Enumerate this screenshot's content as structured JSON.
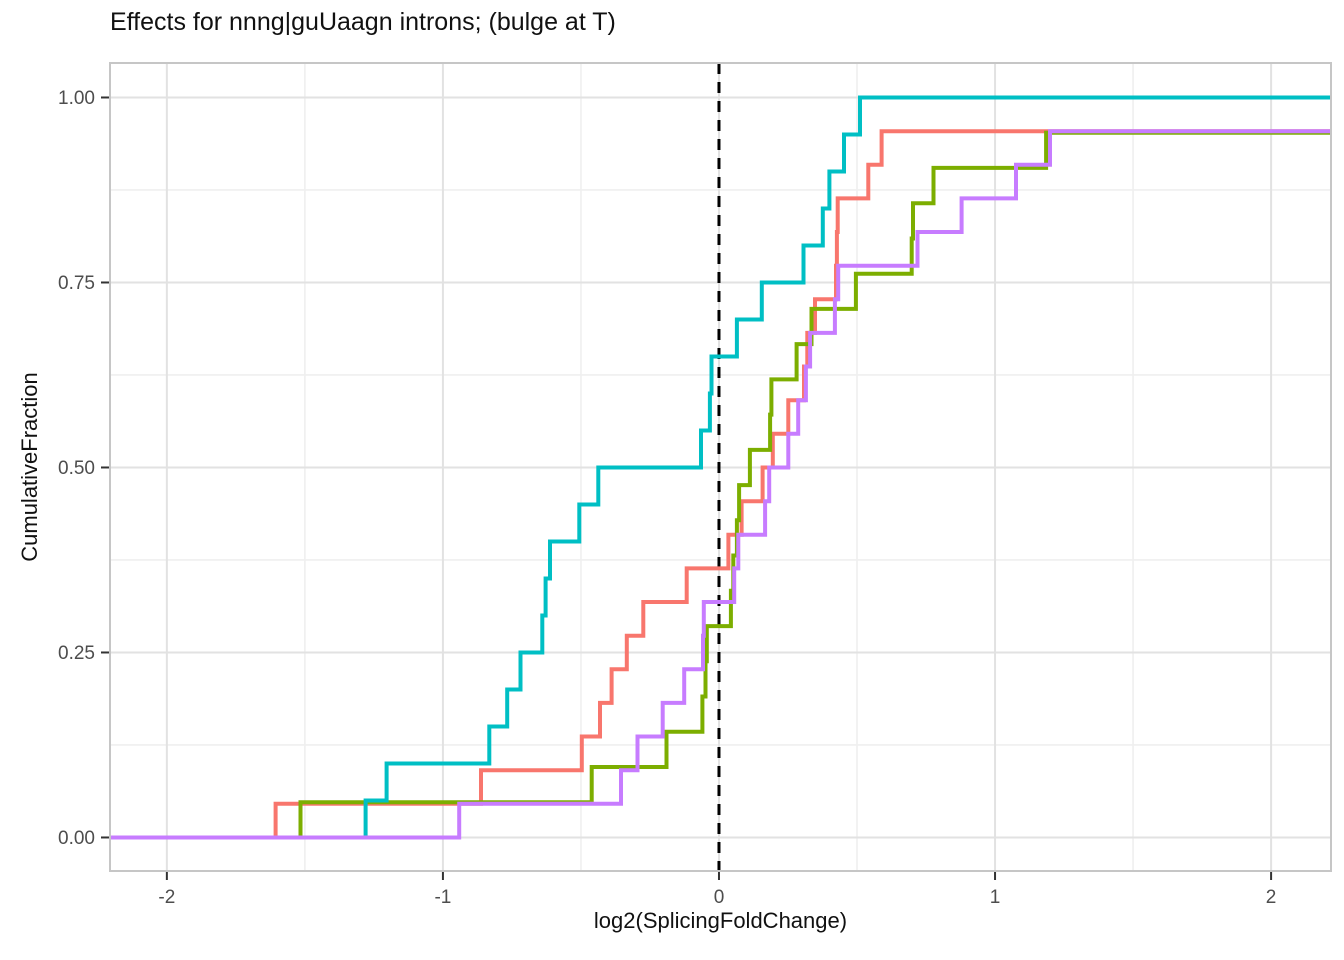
{
  "chart_data": {
    "type": "ecdf_step",
    "title": "Effects for nnng|guUaagn introns; (bulge at T)",
    "xlabel": "log2(SplicingFoldChange)",
    "ylabel": "CumulativeFraction",
    "xlim": [
      -2.206,
      2.217
    ],
    "ylim": [
      -0.0453,
      1.0466
    ],
    "grid": "on",
    "legend_position": "none",
    "x_ticks": {
      "values": [
        -2,
        -1,
        0,
        1,
        2
      ],
      "labels": [
        "-2",
        "-1",
        "0",
        "1",
        "2"
      ]
    },
    "y_ticks": {
      "values": [
        0,
        0.25,
        0.5,
        0.75,
        1.0
      ],
      "labels": [
        "0.00",
        "0.25",
        "0.50",
        "0.75",
        "1.00"
      ]
    },
    "x_minor": [
      -1.5,
      -0.5,
      0.5,
      1.5
    ],
    "y_minor": [
      0.125,
      0.375,
      0.625,
      0.875
    ],
    "vline": {
      "x": 0,
      "style": "dashed",
      "color": "#000000"
    },
    "colors": {
      "salmon": "#F8766D",
      "olive": "#7CAE00",
      "teal": "#00BFC4",
      "purple": "#C77CFF"
    },
    "series": [
      {
        "name": "salmon",
        "color": "#F8766D",
        "n_points": 22,
        "points": [
          [
            -1.606,
            0.0455
          ],
          [
            -0.862,
            0.0909
          ],
          [
            -0.497,
            0.1364
          ],
          [
            -0.431,
            0.1818
          ],
          [
            -0.389,
            0.2273
          ],
          [
            -0.334,
            0.2727
          ],
          [
            -0.274,
            0.3182
          ],
          [
            -0.117,
            0.3636
          ],
          [
            0.034,
            0.4091
          ],
          [
            0.082,
            0.4545
          ],
          [
            0.158,
            0.5
          ],
          [
            0.195,
            0.5455
          ],
          [
            0.251,
            0.5909
          ],
          [
            0.308,
            0.6364
          ],
          [
            0.32,
            0.6818
          ],
          [
            0.348,
            0.7273
          ],
          [
            0.424,
            0.7727
          ],
          [
            0.427,
            0.8182
          ],
          [
            0.43,
            0.8636
          ],
          [
            0.541,
            0.9091
          ],
          [
            0.589,
            0.9545
          ]
        ]
      },
      {
        "name": "olive",
        "color": "#7CAE00",
        "n_points": 21,
        "points": [
          [
            -1.516,
            0.0476
          ],
          [
            -0.461,
            0.0952
          ],
          [
            -0.19,
            0.1429
          ],
          [
            -0.06,
            0.1905
          ],
          [
            -0.049,
            0.2381
          ],
          [
            -0.044,
            0.2857
          ],
          [
            0.043,
            0.3333
          ],
          [
            0.052,
            0.381
          ],
          [
            0.065,
            0.4286
          ],
          [
            0.073,
            0.4762
          ],
          [
            0.112,
            0.5238
          ],
          [
            0.185,
            0.5714
          ],
          [
            0.19,
            0.619
          ],
          [
            0.281,
            0.6667
          ],
          [
            0.335,
            0.7143
          ],
          [
            0.496,
            0.7619
          ],
          [
            0.698,
            0.8095
          ],
          [
            0.703,
            0.8571
          ],
          [
            0.777,
            0.9048
          ],
          [
            1.185,
            0.9524
          ]
        ]
      },
      {
        "name": "teal",
        "color": "#00BFC4",
        "n_points": 20,
        "points": [
          [
            -1.28,
            0.05
          ],
          [
            -1.204,
            0.1
          ],
          [
            -0.832,
            0.15
          ],
          [
            -0.767,
            0.2
          ],
          [
            -0.719,
            0.25
          ],
          [
            -0.64,
            0.3
          ],
          [
            -0.628,
            0.35
          ],
          [
            -0.612,
            0.4
          ],
          [
            -0.506,
            0.45
          ],
          [
            -0.437,
            0.5
          ],
          [
            -0.065,
            0.55
          ],
          [
            -0.033,
            0.6
          ],
          [
            -0.027,
            0.65
          ],
          [
            0.065,
            0.7
          ],
          [
            0.155,
            0.75
          ],
          [
            0.306,
            0.8
          ],
          [
            0.376,
            0.85
          ],
          [
            0.4,
            0.9
          ],
          [
            0.453,
            0.95
          ],
          [
            0.511,
            1.0
          ]
        ]
      },
      {
        "name": "purple",
        "color": "#C77CFF",
        "n_points": 22,
        "points": [
          [
            -0.941,
            0.0455
          ],
          [
            -0.355,
            0.0909
          ],
          [
            -0.295,
            0.1364
          ],
          [
            -0.204,
            0.1818
          ],
          [
            -0.126,
            0.2273
          ],
          [
            -0.058,
            0.2727
          ],
          [
            -0.055,
            0.3182
          ],
          [
            0.055,
            0.3636
          ],
          [
            0.07,
            0.4091
          ],
          [
            0.167,
            0.4545
          ],
          [
            0.182,
            0.5
          ],
          [
            0.251,
            0.5455
          ],
          [
            0.287,
            0.5909
          ],
          [
            0.315,
            0.6364
          ],
          [
            0.33,
            0.6818
          ],
          [
            0.42,
            0.7273
          ],
          [
            0.432,
            0.7727
          ],
          [
            0.719,
            0.8182
          ],
          [
            0.879,
            0.8636
          ],
          [
            1.076,
            0.9091
          ],
          [
            1.199,
            0.9545
          ]
        ]
      }
    ],
    "style": {
      "panel_bg": "#ffffff",
      "grid_major_color": "#e2e2e2",
      "grid_minor_color": "#efefef",
      "border_color": "#c6c6c6",
      "tick_color": "#333333",
      "tick_label_color": "#4d4d4d",
      "line_width": 4
    }
  }
}
